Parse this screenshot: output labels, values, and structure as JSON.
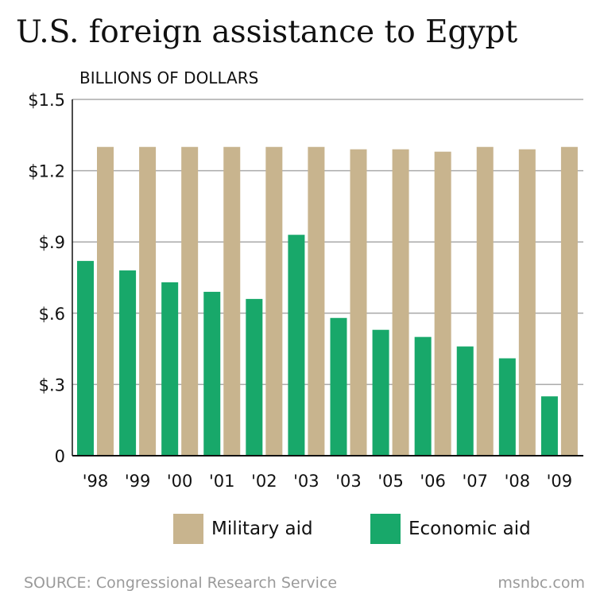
{
  "colors": {
    "military": "#c8b48e",
    "economic": "#18a86a",
    "gridline": "#aaaaaa",
    "axis": "#111111"
  },
  "legend": {
    "military_label": "Military aid",
    "economic_label": "Economic aid"
  },
  "footer": {
    "source": "SOURCE: Congressional Research Service",
    "brand": "msnbc.com"
  },
  "chart_data": {
    "type": "bar",
    "title": "U.S. foreign assistance to Egypt",
    "ylabel": "BILLIONS OF DOLLARS",
    "xlabel": "",
    "categories": [
      "'98",
      "'99",
      "'00",
      "'01",
      "'02",
      "'03",
      "'03",
      "'05",
      "'06",
      "'07",
      "'08",
      "'09"
    ],
    "series": [
      {
        "name": "Economic aid",
        "values": [
          0.82,
          0.78,
          0.73,
          0.69,
          0.66,
          0.93,
          0.58,
          0.53,
          0.5,
          0.46,
          0.41,
          0.25
        ]
      },
      {
        "name": "Military aid",
        "values": [
          1.3,
          1.3,
          1.3,
          1.3,
          1.3,
          1.3,
          1.29,
          1.29,
          1.28,
          1.3,
          1.29,
          1.3
        ]
      }
    ],
    "ylim": [
      0,
      1.5
    ],
    "yticks": [
      0,
      0.3,
      0.6,
      0.9,
      1.2,
      1.5
    ],
    "ytick_labels": [
      "0",
      "$.3",
      "$.6",
      "$.9",
      "$1.2",
      "$1.5"
    ],
    "grid": true,
    "legend_position": "bottom"
  }
}
